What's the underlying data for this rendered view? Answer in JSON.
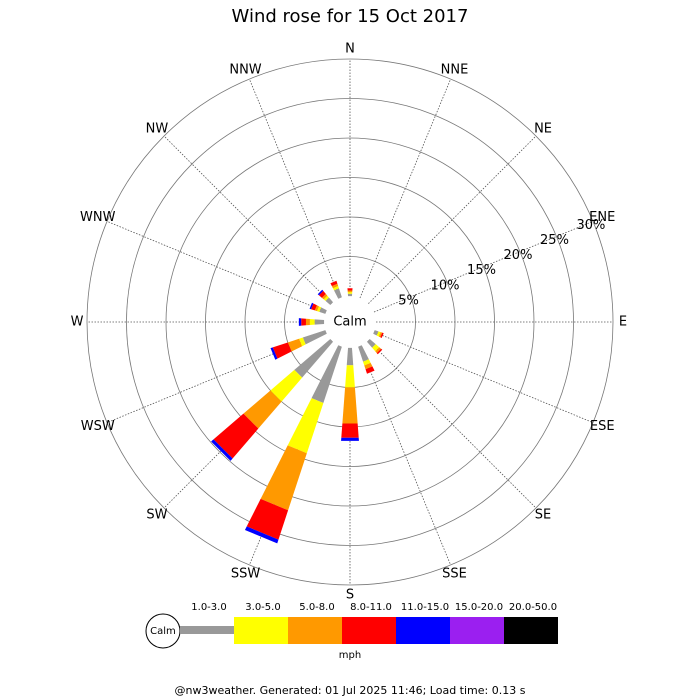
{
  "chart_data": {
    "type": "windrose",
    "title": "Wind rose for 15 Oct 2017",
    "categories": [
      "N",
      "NNE",
      "NE",
      "ENE",
      "E",
      "ESE",
      "SE",
      "SSE",
      "S",
      "SSW",
      "SW",
      "WSW",
      "W",
      "WNW",
      "NW",
      "NNW"
    ],
    "series": [
      {
        "name": "1.0-3.0",
        "color": "#999999",
        "values": [
          0.3,
          0,
          0,
          0,
          0,
          0.5,
          1,
          2,
          2.2,
          7.5,
          6,
          3,
          1.2,
          0.8,
          0.8,
          1.2
        ]
      },
      {
        "name": "3.0-5.0",
        "color": "#ffff00",
        "values": [
          0.2,
          0,
          0,
          0,
          0,
          0.3,
          0.6,
          0.5,
          2.8,
          6.7,
          4,
          0.5,
          0.6,
          0.3,
          0.3,
          0.3
        ]
      },
      {
        "name": "5.0-8.0",
        "color": "#ff9900",
        "values": [
          0.2,
          0,
          0,
          0,
          0,
          0.2,
          0.3,
          0.5,
          4.6,
          7.6,
          4.5,
          1.5,
          0.5,
          0.3,
          0.3,
          0.3
        ]
      },
      {
        "name": "8.0-11.0",
        "color": "#ff0000",
        "values": [
          0.3,
          0,
          0,
          0,
          0,
          0.2,
          0.2,
          0.6,
          1.8,
          3.9,
          5,
          2,
          0.6,
          0.5,
          0.5,
          0.4
        ]
      },
      {
        "name": "11.0-15.0",
        "color": "#0000ff",
        "values": [
          0,
          0,
          0,
          0,
          0,
          0,
          0,
          0,
          0.4,
          0.5,
          0.4,
          0.3,
          0.3,
          0.2,
          0.2,
          0
        ]
      },
      {
        "name": "15.0-20.0",
        "color": "#9b1ff0",
        "values": [
          0,
          0,
          0,
          0,
          0,
          0,
          0,
          0,
          0,
          0,
          0,
          0,
          0,
          0,
          0,
          0
        ]
      },
      {
        "name": "20.0-50.0",
        "color": "#000000",
        "values": [
          0,
          0,
          0,
          0,
          0,
          0,
          0,
          0,
          0,
          0,
          0,
          0,
          0,
          0,
          0,
          0
        ]
      }
    ],
    "rlim": [
      0,
      30
    ],
    "rticks": [
      {
        "value": 5,
        "label": "5%"
      },
      {
        "value": 10,
        "label": "10%"
      },
      {
        "value": 15,
        "label": "15%"
      },
      {
        "value": 20,
        "label": "20%"
      },
      {
        "value": 25,
        "label": "25%"
      },
      {
        "value": 30,
        "label": "30%"
      }
    ],
    "calm_label": "Calm",
    "legend_calm": "Calm",
    "legend_unit": "mph",
    "footer": "@nw3weather. Generated: 01 Jul 2025 11:46; Load time: 0.13 s"
  }
}
